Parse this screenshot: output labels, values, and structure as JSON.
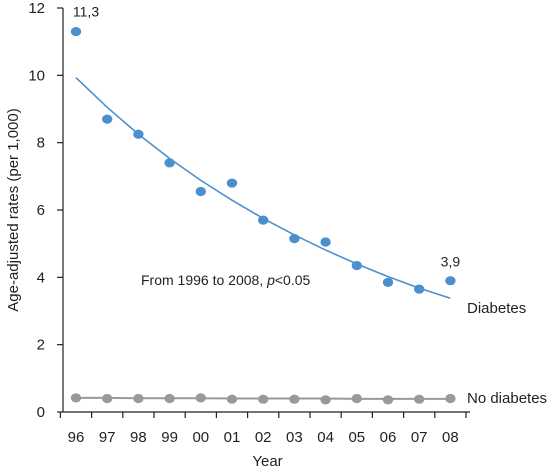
{
  "chart_data": {
    "type": "scatter",
    "xlabel": "Year",
    "ylabel": "Age-adjusted rates (per 1,000)",
    "categories": [
      "96",
      "97",
      "98",
      "99",
      "00",
      "01",
      "02",
      "03",
      "04",
      "05",
      "06",
      "07",
      "08"
    ],
    "ylim": [
      0,
      12
    ],
    "yticks": [
      "0",
      "2",
      "4",
      "6",
      "8",
      "10",
      "12"
    ],
    "grid": false,
    "series": [
      {
        "name": "Diabetes",
        "color": "#4a90cf",
        "values": [
          11.3,
          8.7,
          8.25,
          7.4,
          6.55,
          6.8,
          5.7,
          5.15,
          5.05,
          4.35,
          3.85,
          3.65,
          3.9
        ],
        "trend": [
          9.93,
          9.05,
          8.25,
          7.53,
          6.88,
          6.29,
          5.75,
          5.26,
          4.81,
          4.4,
          4.02,
          3.68,
          3.38
        ]
      },
      {
        "name": "No diabetes",
        "color": "#999999",
        "values": [
          0.42,
          0.4,
          0.4,
          0.4,
          0.42,
          0.38,
          0.38,
          0.38,
          0.36,
          0.4,
          0.36,
          0.38,
          0.4
        ],
        "trend": [
          0.42,
          0.42,
          0.41,
          0.41,
          0.41,
          0.4,
          0.4,
          0.4,
          0.4,
          0.39,
          0.39,
          0.39,
          0.39
        ]
      }
    ],
    "annotations": {
      "first_value": "11,3",
      "last_value": "3,9",
      "significance_prefix": "From 1996 to 2008, ",
      "significance_p": "p",
      "significance_suffix": "<0.05"
    }
  }
}
